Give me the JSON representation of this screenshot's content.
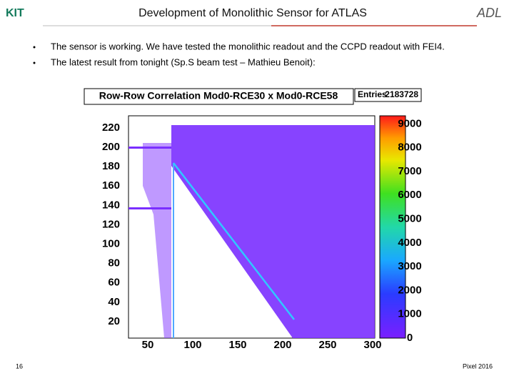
{
  "header": {
    "title": "Development of Monolithic Sensor for ATLAS",
    "logo_left": "KIT",
    "logo_right": "ADL"
  },
  "bullets": [
    "The sensor is working. We have tested the monolithic readout and the CCPD readout with FEI4.",
    "The latest result from tonight (Sp.S beam test – Mathieu Benoit):"
  ],
  "figure": {
    "title": "Row-Row Correlation Mod0-RCE30 x Mod0-RCE58",
    "stats_label": "Entries",
    "stats_value": "2183728",
    "x_ticks": [
      50,
      100,
      150,
      200,
      250,
      300
    ],
    "y_ticks": [
      20,
      40,
      60,
      80,
      100,
      120,
      140,
      160,
      180,
      200,
      220
    ],
    "color_scale_ticks": [
      0,
      1000,
      2000,
      3000,
      4000,
      5000,
      6000,
      7000,
      8000,
      9000
    ]
  },
  "footer": {
    "page": "16",
    "event": "Pixel 2016"
  }
}
